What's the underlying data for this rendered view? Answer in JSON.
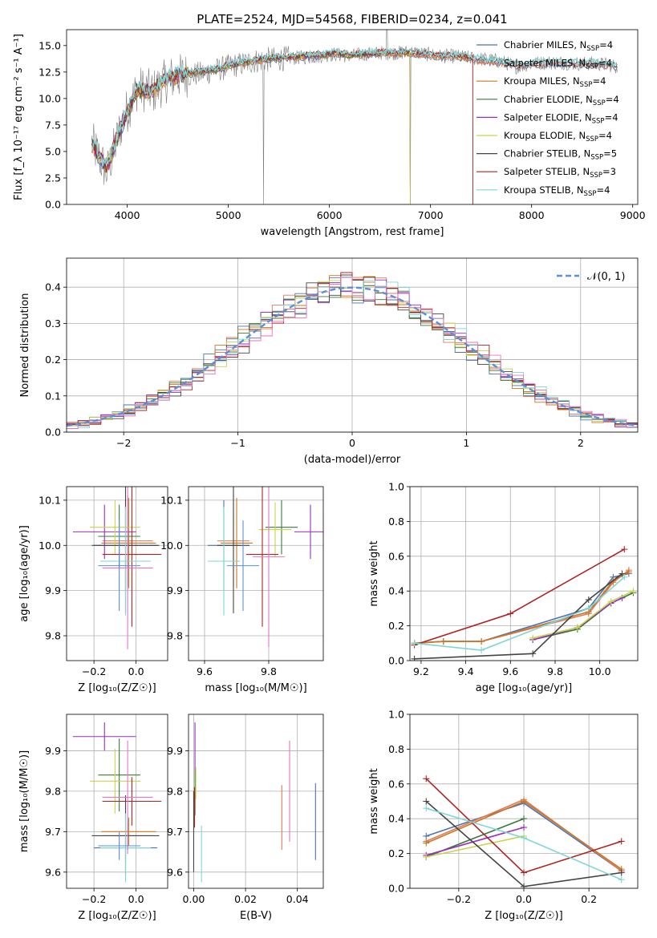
{
  "chart_data": [
    {
      "id": "spectrum",
      "type": "line",
      "title": "PLATE=2524, MJD=54568, FIBERID=0234, z=0.041",
      "xlabel": "wavelength [Angstrom, rest frame]",
      "ylabel": "Flux [f_λ 10⁻¹⁷ erg cm⁻² s⁻¹ A⁻¹]",
      "xlim": [
        3400,
        9050
      ],
      "ylim": [
        0,
        16.5
      ],
      "xticks": [
        4000,
        5000,
        6000,
        7000,
        8000,
        9000
      ],
      "yticks": [
        0.0,
        2.5,
        5.0,
        7.5,
        10.0,
        12.5,
        15.0
      ],
      "legend_position": "upper-right",
      "observed": {
        "x": [
          3650,
          3800,
          3950,
          4100,
          4250,
          4400,
          4550,
          4700,
          4850,
          5000,
          5150,
          5300,
          5450,
          5600,
          5750,
          5900,
          6050,
          6200,
          6350,
          6500,
          6650,
          6800,
          6950,
          7100,
          7250,
          7400,
          7550,
          7700,
          7850,
          8000,
          8150,
          8300,
          8450,
          8600,
          8750,
          8850
        ],
        "y": [
          5.8,
          3.0,
          7.8,
          11.0,
          10.6,
          11.8,
          12.2,
          12.3,
          12.6,
          13.0,
          13.3,
          13.6,
          13.7,
          13.8,
          13.9,
          14.0,
          14.2,
          14.0,
          14.2,
          14.3,
          14.3,
          14.4,
          14.2,
          14.0,
          14.0,
          13.8,
          13.7,
          13.5,
          13.0,
          13.3,
          13.4,
          13.4,
          13.3,
          13.3,
          13.2,
          13.0
        ]
      },
      "models_common": {
        "x": [
          3650,
          3800,
          3950,
          4100,
          4250,
          4400,
          4550,
          4700,
          4850,
          5000,
          5150,
          5300,
          5450,
          5600,
          5750,
          5900,
          6050,
          6200,
          6350,
          6500,
          6650,
          6800,
          6950,
          7100,
          7250,
          7400,
          7550,
          7700,
          7850,
          8000,
          8150,
          8300,
          8450,
          8600,
          8750,
          8850
        ],
        "y": [
          5.6,
          3.5,
          7.6,
          10.8,
          10.7,
          11.9,
          12.3,
          12.5,
          12.7,
          13.1,
          13.4,
          13.6,
          13.8,
          13.9,
          14.0,
          14.1,
          14.3,
          14.1,
          14.2,
          14.3,
          14.3,
          14.3,
          14.2,
          14.0,
          14.0,
          13.8,
          13.6,
          13.4,
          13.1,
          13.3,
          13.4,
          13.4,
          13.3,
          13.3,
          13.2,
          13.0
        ]
      },
      "series": [
        {
          "name": "Chabrier MILES, N_SSP=4",
          "label_main": "Chabrier MILES, N",
          "sub": "SSP",
          "suffix": "=4",
          "color": "#4c72b0",
          "end": 8850
        },
        {
          "name": "Salpeter MILES, N_SSP=4",
          "label_main": "Salpeter MILES, N",
          "sub": "SSP",
          "suffix": "=4",
          "color": "#e07b54",
          "end": 8850
        },
        {
          "name": "Kroupa MILES, N_SSP=4",
          "label_main": "Kroupa MILES, N",
          "sub": "SSP",
          "suffix": "=4",
          "color": "#cc7722",
          "end": 7420
        },
        {
          "name": "Chabrier ELODIE, N_SSP=4",
          "label_main": "Chabrier ELODIE, N",
          "sub": "SSP",
          "suffix": "=4",
          "color": "#3a7a3a",
          "end": 6800
        },
        {
          "name": "Salpeter ELODIE, N_SSP=4",
          "label_main": "Salpeter ELODIE, N",
          "sub": "SSP",
          "suffix": "=4",
          "color": "#9b2fbf",
          "end": 6800
        },
        {
          "name": "Kroupa ELODIE, N_SSP=4",
          "label_main": "Kroupa ELODIE, N",
          "sub": "SSP",
          "suffix": "=4",
          "color": "#c8d44e",
          "end": 6800
        },
        {
          "name": "Chabrier STELIB, N_SSP=5",
          "label_main": "Chabrier STELIB, N",
          "sub": "SSP",
          "suffix": "=5",
          "color": "#444444",
          "end": 8850
        },
        {
          "name": "Salpeter STELIB, N_SSP=3",
          "label_main": "Salpeter STELIB, N",
          "sub": "SSP",
          "suffix": "=3",
          "color": "#b22222",
          "end": 7420
        },
        {
          "name": "Kroupa STELIB, N_SSP=4",
          "label_main": "Kroupa STELIB, N",
          "sub": "SSP",
          "suffix": "=4",
          "color": "#7fd6d6",
          "end": 8850
        }
      ]
    },
    {
      "id": "residuals",
      "type": "histogram",
      "xlabel": "(data-model)/error",
      "ylabel": "Normed distribution",
      "xlim": [
        -2.5,
        2.5
      ],
      "ylim": [
        0,
        0.48
      ],
      "xticks": [
        -2,
        -1,
        0,
        1,
        2
      ],
      "yticks": [
        0.0,
        0.1,
        0.2,
        0.3,
        0.4
      ],
      "grid": true,
      "legend": {
        "label": "𝒩(0, 1)",
        "position": "upper-right",
        "color": "#5b8fd9"
      },
      "bin_width": 0.1,
      "bin_start": -2.5,
      "series_colors": [
        "#4c72b0",
        "#e07b54",
        "#cc7722",
        "#3a7a3a",
        "#9b2fbf",
        "#c8d44e",
        "#444444",
        "#b22222",
        "#7fd6d6",
        "#e377c2"
      ]
    },
    {
      "id": "age_vs_Z",
      "type": "errorbar",
      "xlabel": "Z [log₁₀(Z/Z☉)]",
      "ylabel": "age  [log₁₀(age/yr)]",
      "xlim": [
        -0.33,
        0.15
      ],
      "ylim": [
        9.745,
        10.13
      ],
      "xticks": [
        -0.2,
        0.0
      ],
      "yticks": [
        9.8,
        9.9,
        10.0,
        10.1
      ],
      "grid": true,
      "points": [
        {
          "x": -0.05,
          "y": 10.0,
          "xerr": 0.15,
          "yerr": 0.1,
          "color": "#4c72b0"
        },
        {
          "x": -0.04,
          "y": 10.01,
          "xerr": 0.12,
          "yerr": 0.1,
          "color": "#e07b54"
        },
        {
          "x": -0.035,
          "y": 10.005,
          "xerr": 0.13,
          "yerr": 0.1,
          "color": "#cc7722"
        },
        {
          "x": -0.08,
          "y": 10.02,
          "xerr": 0.1,
          "yerr": 0.07,
          "color": "#3a7a3a"
        },
        {
          "x": -0.15,
          "y": 10.03,
          "xerr": 0.15,
          "yerr": 0.06,
          "color": "#9b2fbf"
        },
        {
          "x": -0.1,
          "y": 10.04,
          "xerr": 0.12,
          "yerr": 0.06,
          "color": "#c8d44e"
        },
        {
          "x": -0.05,
          "y": 10.0,
          "xerr": 0.16,
          "yerr": 0.15,
          "color": "#444444"
        },
        {
          "x": -0.02,
          "y": 9.98,
          "xerr": 0.14,
          "yerr": 0.16,
          "color": "#b22222"
        },
        {
          "x": -0.05,
          "y": 9.965,
          "xerr": 0.12,
          "yerr": 0.12,
          "color": "#7fd6d6"
        },
        {
          "x": -0.04,
          "y": 9.95,
          "xerr": 0.12,
          "yerr": 0.18,
          "color": "#e377c2"
        },
        {
          "x": -0.08,
          "y": 9.955,
          "xerr": 0.1,
          "yerr": 0.1,
          "color": "#5b8fd9"
        }
      ]
    },
    {
      "id": "age_vs_mass",
      "type": "errorbar",
      "xlabel": "mass [log₁₀(M/M☉)]",
      "ylabel": "",
      "xlim": [
        9.55,
        9.97
      ],
      "ylim": [
        9.745,
        10.13
      ],
      "xticks": [
        9.6,
        9.8
      ],
      "yticks": [
        9.8,
        9.9,
        10.0,
        10.1
      ],
      "grid": true,
      "points": [
        {
          "x": 9.66,
          "y": 10.0,
          "xerr": 0.05,
          "yerr": 0.1,
          "color": "#4c72b0"
        },
        {
          "x": 9.69,
          "y": 10.01,
          "xerr": 0.05,
          "yerr": 0.1,
          "color": "#e07b54"
        },
        {
          "x": 9.7,
          "y": 10.005,
          "xerr": 0.05,
          "yerr": 0.1,
          "color": "#cc7722"
        },
        {
          "x": 9.84,
          "y": 10.04,
          "xerr": 0.05,
          "yerr": 0.06,
          "color": "#3a7a3a"
        },
        {
          "x": 9.93,
          "y": 10.03,
          "xerr": 0.05,
          "yerr": 0.06,
          "color": "#9b2fbf"
        },
        {
          "x": 9.82,
          "y": 10.035,
          "xerr": 0.05,
          "yerr": 0.06,
          "color": "#c8d44e"
        },
        {
          "x": 9.69,
          "y": 10.0,
          "xerr": 0.05,
          "yerr": 0.15,
          "color": "#444444"
        },
        {
          "x": 9.78,
          "y": 9.98,
          "xerr": 0.05,
          "yerr": 0.16,
          "color": "#b22222"
        },
        {
          "x": 9.66,
          "y": 9.965,
          "xerr": 0.05,
          "yerr": 0.12,
          "color": "#7fd6d6"
        },
        {
          "x": 9.8,
          "y": 9.975,
          "xerr": 0.05,
          "yerr": 0.2,
          "color": "#e377c2"
        },
        {
          "x": 9.72,
          "y": 9.955,
          "xerr": 0.05,
          "yerr": 0.1,
          "color": "#5b8fd9"
        }
      ]
    },
    {
      "id": "mass_weight_vs_age",
      "type": "line",
      "xlabel": "age  [log₁₀(age/yr)]",
      "ylabel": "mass weight",
      "xlim": [
        9.15,
        10.17
      ],
      "ylim": [
        0,
        1.0
      ],
      "xticks": [
        9.2,
        9.4,
        9.6,
        9.8,
        10.0
      ],
      "yticks": [
        0.0,
        0.2,
        0.4,
        0.6,
        0.8,
        1.0
      ],
      "grid": true,
      "series": [
        {
          "name": "Chabrier MILES",
          "x": [
            9.17,
            9.3,
            9.47,
            9.95,
            10.06,
            10.13
          ],
          "y": [
            0.1,
            0.11,
            0.11,
            0.3,
            0.48,
            0.5
          ],
          "color": "#4c72b0"
        },
        {
          "name": "Salpeter MILES",
          "x": [
            9.17,
            9.3,
            9.47,
            9.95,
            10.06,
            10.13
          ],
          "y": [
            0.1,
            0.11,
            0.11,
            0.27,
            0.45,
            0.52
          ],
          "color": "#e07b54"
        },
        {
          "name": "Kroupa MILES",
          "x": [
            9.17,
            9.3,
            9.47,
            9.95,
            10.06,
            10.13
          ],
          "y": [
            0.1,
            0.11,
            0.11,
            0.28,
            0.46,
            0.51
          ],
          "color": "#cc7722"
        },
        {
          "name": "Chabrier ELODIE",
          "x": [
            9.7,
            9.9,
            10.05,
            10.15
          ],
          "y": [
            0.12,
            0.18,
            0.33,
            0.39
          ],
          "color": "#3a7a3a"
        },
        {
          "name": "Salpeter ELODIE",
          "x": [
            9.7,
            9.9,
            10.05,
            10.1
          ],
          "y": [
            0.12,
            0.19,
            0.33,
            0.36
          ],
          "color": "#9b2fbf"
        },
        {
          "name": "Kroupa ELODIE",
          "x": [
            9.7,
            9.9,
            10.05,
            10.15
          ],
          "y": [
            0.13,
            0.19,
            0.34,
            0.4
          ],
          "color": "#c8d44e"
        },
        {
          "name": "Chabrier STELIB",
          "x": [
            9.17,
            9.7,
            9.95,
            10.1
          ],
          "y": [
            0.01,
            0.04,
            0.35,
            0.5
          ],
          "color": "#444444"
        },
        {
          "name": "Salpeter STELIB",
          "x": [
            9.17,
            9.6,
            10.11
          ],
          "y": [
            0.09,
            0.27,
            0.64
          ],
          "color": "#b22222"
        },
        {
          "name": "Kroupa STELIB",
          "x": [
            9.17,
            9.47,
            9.95,
            10.11
          ],
          "y": [
            0.1,
            0.06,
            0.3,
            0.48
          ],
          "color": "#7fd6d6"
        }
      ]
    },
    {
      "id": "mass_vs_Z",
      "type": "errorbar",
      "xlabel": "Z [log₁₀(Z/Z☉)]",
      "ylabel": "mass [log₁₀(M/M☉)]",
      "xlim": [
        -0.33,
        0.15
      ],
      "ylim": [
        9.56,
        9.99
      ],
      "xticks": [
        -0.2,
        0.0
      ],
      "yticks": [
        9.6,
        9.7,
        9.8,
        9.9
      ],
      "grid": true,
      "points": [
        {
          "x": -0.05,
          "y": 9.66,
          "xerr": 0.15,
          "yerr": 0.035,
          "color": "#4c72b0"
        },
        {
          "x": -0.04,
          "y": 9.69,
          "xerr": 0.12,
          "yerr": 0.035,
          "color": "#e07b54"
        },
        {
          "x": -0.035,
          "y": 9.7,
          "xerr": 0.13,
          "yerr": 0.035,
          "color": "#cc7722"
        },
        {
          "x": -0.08,
          "y": 9.84,
          "xerr": 0.1,
          "yerr": 0.09,
          "color": "#3a7a3a"
        },
        {
          "x": -0.15,
          "y": 9.935,
          "xerr": 0.15,
          "yerr": 0.035,
          "color": "#9b2fbf"
        },
        {
          "x": -0.1,
          "y": 9.825,
          "xerr": 0.12,
          "yerr": 0.08,
          "color": "#c8d44e"
        },
        {
          "x": -0.05,
          "y": 9.69,
          "xerr": 0.16,
          "yerr": 0.1,
          "color": "#444444"
        },
        {
          "x": -0.02,
          "y": 9.775,
          "xerr": 0.14,
          "yerr": 0.06,
          "color": "#b22222"
        },
        {
          "x": -0.05,
          "y": 9.66,
          "xerr": 0.12,
          "yerr": 0.085,
          "color": "#7fd6d6"
        },
        {
          "x": -0.04,
          "y": 9.785,
          "xerr": 0.12,
          "yerr": 0.14,
          "color": "#e377c2"
        },
        {
          "x": -0.08,
          "y": 9.665,
          "xerr": 0.1,
          "yerr": 0.035,
          "color": "#5b8fd9"
        }
      ]
    },
    {
      "id": "mass_vs_ebv",
      "type": "errorbar",
      "xlabel": "E(B-V)",
      "ylabel": "",
      "xlim": [
        -0.002,
        0.05
      ],
      "ylim": [
        9.56,
        9.99
      ],
      "xticks": [
        0.0,
        0.02,
        0.04
      ],
      "yticks": [
        9.6,
        9.7,
        9.8,
        9.9
      ],
      "grid": true,
      "points": [
        {
          "x": 0.047,
          "y": 9.725,
          "xerr": 0,
          "yerr": 0.095,
          "color": "#4c72b0"
        },
        {
          "x": 0.034,
          "y": 9.735,
          "xerr": 0,
          "yerr": 0.08,
          "color": "#e07b54"
        },
        {
          "x": 0.0005,
          "y": 9.8,
          "xerr": 0,
          "yerr": 0.06,
          "color": "#3a7a3a"
        },
        {
          "x": 0.0005,
          "y": 9.91,
          "xerr": 0,
          "yerr": 0.06,
          "color": "#9b2fbf"
        },
        {
          "x": 0.0008,
          "y": 9.82,
          "xerr": 0,
          "yerr": 0.04,
          "color": "#c8d44e"
        },
        {
          "x": 0.0,
          "y": 9.7,
          "xerr": 0,
          "yerr": 0.1,
          "color": "#444444"
        },
        {
          "x": 0.0003,
          "y": 9.76,
          "xerr": 0,
          "yerr": 0.05,
          "color": "#b22222"
        },
        {
          "x": 0.003,
          "y": 9.645,
          "xerr": 0,
          "yerr": 0.07,
          "color": "#7fd6d6"
        },
        {
          "x": 0.037,
          "y": 9.8,
          "xerr": 0,
          "yerr": 0.125,
          "color": "#e377c2"
        }
      ]
    },
    {
      "id": "mass_weight_vs_Z",
      "type": "line",
      "xlabel": "Z [log₁₀(Z/Z☉)]",
      "ylabel": "mass weight",
      "xlim": [
        -0.35,
        0.35
      ],
      "ylim": [
        0,
        1.0
      ],
      "xticks": [
        -0.2,
        0.0,
        0.2
      ],
      "yticks": [
        0.0,
        0.2,
        0.4,
        0.6,
        0.8,
        1.0
      ],
      "grid": true,
      "series": [
        {
          "name": "Chabrier MILES",
          "x": [
            -0.3,
            0.0,
            0.3
          ],
          "y": [
            0.3,
            0.49,
            0.1
          ],
          "color": "#4c72b0"
        },
        {
          "name": "Salpeter MILES",
          "x": [
            -0.3,
            0.0,
            0.3
          ],
          "y": [
            0.27,
            0.51,
            0.1
          ],
          "color": "#e07b54"
        },
        {
          "name": "Kroupa MILES",
          "x": [
            -0.3,
            0.0,
            0.3
          ],
          "y": [
            0.26,
            0.5,
            0.11
          ],
          "color": "#cc7722"
        },
        {
          "name": "Chabrier ELODIE",
          "x": [
            -0.3,
            0.0
          ],
          "y": [
            0.18,
            0.4
          ],
          "color": "#3a7a3a"
        },
        {
          "name": "Salpeter ELODIE",
          "x": [
            -0.3,
            0.0
          ],
          "y": [
            0.19,
            0.35
          ],
          "color": "#9b2fbf"
        },
        {
          "name": "Kroupa ELODIE",
          "x": [
            -0.3,
            0.0
          ],
          "y": [
            0.18,
            0.3
          ],
          "color": "#c8d44e"
        },
        {
          "name": "Chabrier STELIB",
          "x": [
            -0.3,
            0.0,
            0.3
          ],
          "y": [
            0.5,
            0.01,
            0.09
          ],
          "color": "#444444"
        },
        {
          "name": "Salpeter STELIB",
          "x": [
            -0.3,
            0.0,
            0.3
          ],
          "y": [
            0.63,
            0.09,
            0.27
          ],
          "color": "#b22222"
        },
        {
          "name": "Kroupa STELIB",
          "x": [
            -0.3,
            0.0,
            0.3
          ],
          "y": [
            0.46,
            0.29,
            0.05
          ],
          "color": "#7fd6d6"
        }
      ]
    }
  ]
}
